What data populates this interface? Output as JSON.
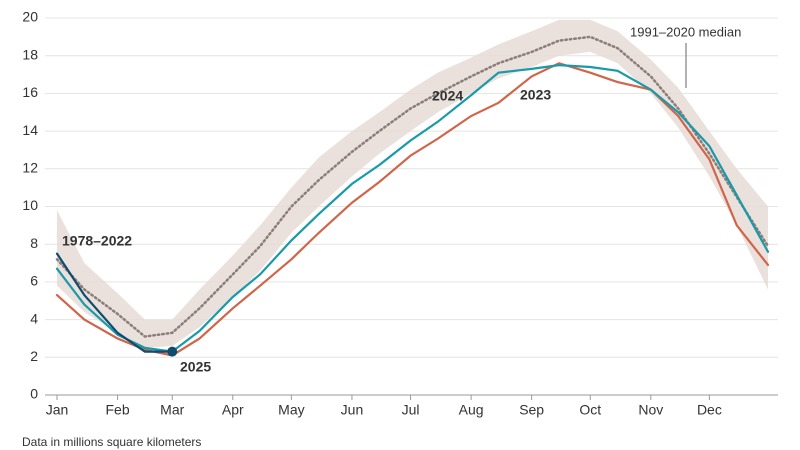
{
  "chart_data": {
    "type": "line",
    "note": "Data in millions square kilometers",
    "x": [
      1,
      15,
      32,
      46,
      60,
      74,
      91,
      105,
      121,
      135,
      152,
      166,
      182,
      196,
      213,
      227,
      244,
      258,
      274,
      288,
      305,
      319,
      335,
      349,
      365
    ],
    "xlim": [
      1,
      365
    ],
    "xticks": [
      {
        "value": 1,
        "label": "Jan"
      },
      {
        "value": 32,
        "label": "Feb"
      },
      {
        "value": 60,
        "label": "Mar"
      },
      {
        "value": 91,
        "label": "Apr"
      },
      {
        "value": 121,
        "label": "May"
      },
      {
        "value": 152,
        "label": "Jun"
      },
      {
        "value": 182,
        "label": "Jul"
      },
      {
        "value": 213,
        "label": "Aug"
      },
      {
        "value": 244,
        "label": "Sep"
      },
      {
        "value": 274,
        "label": "Oct"
      },
      {
        "value": 305,
        "label": "Nov"
      },
      {
        "value": 335,
        "label": "Dec"
      }
    ],
    "ylim": [
      0,
      20
    ],
    "yticks": [
      0,
      2,
      4,
      6,
      8,
      10,
      12,
      14,
      16,
      18,
      20
    ],
    "grid": true,
    "band": {
      "name": "1978–2022",
      "color": "#e6dad6",
      "low": [
        5.8,
        4.4,
        3.3,
        2.5,
        2.6,
        3.6,
        5.2,
        6.6,
        8.6,
        10.0,
        11.6,
        12.8,
        14.0,
        15.0,
        16.0,
        16.8,
        17.4,
        18.0,
        18.2,
        17.6,
        16.0,
        14.2,
        11.6,
        9.0,
        5.6
      ],
      "high": [
        9.8,
        7.0,
        5.4,
        4.0,
        4.0,
        5.6,
        7.4,
        9.0,
        11.0,
        12.6,
        14.0,
        15.0,
        16.2,
        17.1,
        17.9,
        18.6,
        19.3,
        19.9,
        19.9,
        19.3,
        17.8,
        16.3,
        14.0,
        12.0,
        10.0
      ]
    },
    "series": [
      {
        "name": "1991–2020 median",
        "color": "#8a7d7a",
        "dash": true,
        "values": [
          7.2,
          5.6,
          4.3,
          3.1,
          3.3,
          4.6,
          6.4,
          7.9,
          10.0,
          11.4,
          12.9,
          14.0,
          15.2,
          16.0,
          16.9,
          17.6,
          18.2,
          18.8,
          19.0,
          18.4,
          16.9,
          15.2,
          12.8,
          10.5,
          7.9
        ]
      },
      {
        "name": "2023",
        "color": "#d0654a",
        "values": [
          5.3,
          4.0,
          3.0,
          2.4,
          2.1,
          3.0,
          4.6,
          5.8,
          7.2,
          8.6,
          10.2,
          11.3,
          12.7,
          13.6,
          14.8,
          15.5,
          16.9,
          17.6,
          17.1,
          16.6,
          16.2,
          14.8,
          12.5,
          9.0,
          6.9
        ]
      },
      {
        "name": "2024",
        "color": "#1a9aa8",
        "values": [
          6.7,
          4.8,
          3.2,
          2.5,
          2.3,
          3.4,
          5.2,
          6.4,
          8.2,
          9.6,
          11.2,
          12.2,
          13.5,
          14.5,
          15.9,
          17.1,
          17.3,
          17.5,
          17.4,
          17.2,
          16.2,
          15.0,
          13.2,
          10.6,
          7.6
        ]
      },
      {
        "name": "2025",
        "color": "#0f4c6e",
        "end_marker": true,
        "values": [
          7.5,
          5.3,
          3.3,
          2.3,
          2.3,
          null,
          null,
          null,
          null,
          null,
          null,
          null,
          null,
          null,
          null,
          null,
          null,
          null,
          null,
          null,
          null,
          null,
          null,
          null,
          null
        ]
      }
    ]
  }
}
